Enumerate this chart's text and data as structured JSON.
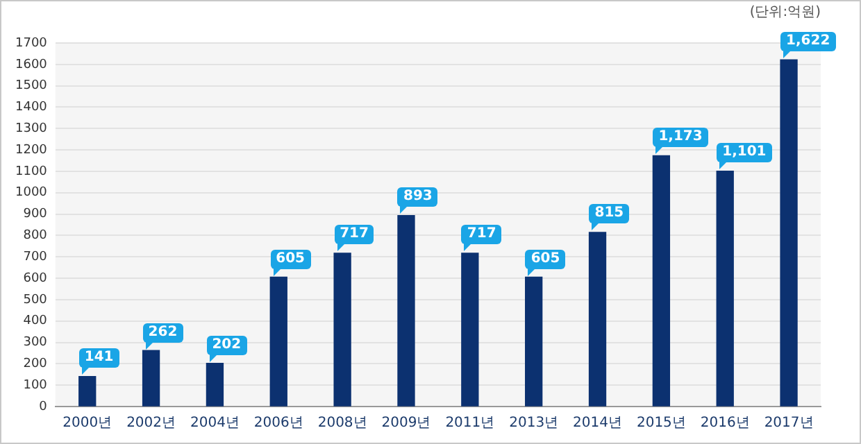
{
  "chart_data": {
    "type": "bar",
    "categories": [
      "2000년",
      "2002년",
      "2004년",
      "2006년",
      "2008년",
      "2009년",
      "2011년",
      "2013년",
      "2014년",
      "2015년",
      "2016년",
      "2017년"
    ],
    "values": [
      141,
      262,
      202,
      605,
      717,
      893,
      717,
      605,
      815,
      1173,
      1101,
      1622
    ],
    "color": "#0c3170",
    "ylim": [
      0,
      1700
    ],
    "yticks": [
      0,
      100,
      200,
      300,
      400,
      500,
      600,
      700,
      800,
      900,
      1000,
      1100,
      1200,
      1300,
      1400,
      1500,
      1600,
      1700
    ],
    "value_labels": [
      "141",
      "262",
      "202",
      "605",
      "717",
      "893",
      "717",
      "605",
      "815",
      "1,173",
      "1,101",
      "1,622"
    ],
    "grid": "y",
    "annotations": [
      "(단위:억원)"
    ]
  }
}
